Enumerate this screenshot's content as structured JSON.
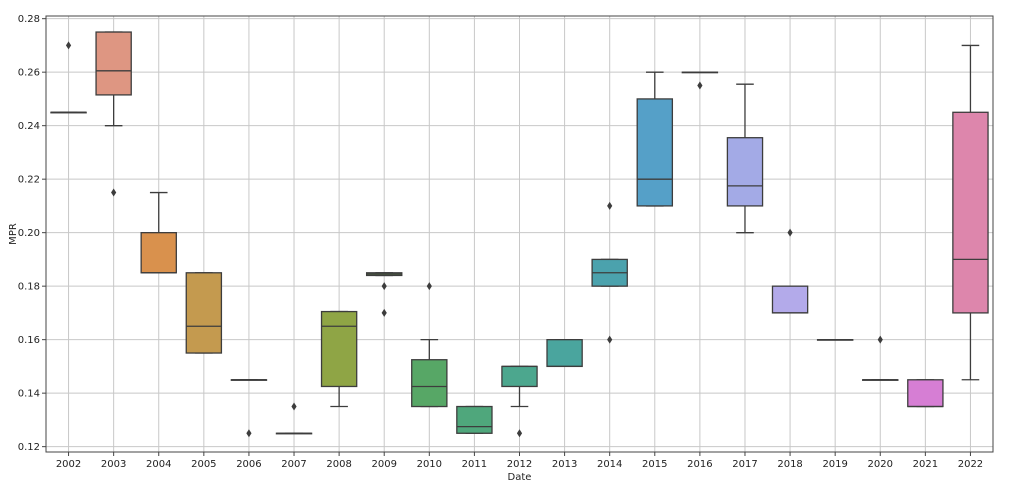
{
  "chart_data": {
    "type": "box",
    "xlabel": "Date",
    "ylabel": "MPR",
    "ylim": [
      0.118,
      0.281
    ],
    "y_ticks": [
      "0.12",
      "0.14",
      "0.16",
      "0.18",
      "0.20",
      "0.22",
      "0.24",
      "0.26",
      "0.28"
    ],
    "grid": true,
    "categories": [
      "2002",
      "2003",
      "2004",
      "2005",
      "2006",
      "2007",
      "2008",
      "2009",
      "2010",
      "2011",
      "2012",
      "2013",
      "2014",
      "2015",
      "2016",
      "2017",
      "2018",
      "2019",
      "2020",
      "2021",
      "2022"
    ],
    "boxes": [
      {
        "category": "2002",
        "q1": 0.245,
        "median": 0.245,
        "q3": 0.245,
        "whisker_low": 0.245,
        "whisker_high": 0.245,
        "outliers": [
          0.27
        ],
        "color": "#e6a48a"
      },
      {
        "category": "2003",
        "q1": 0.2515,
        "median": 0.2605,
        "q3": 0.275,
        "whisker_low": 0.24,
        "whisker_high": 0.275,
        "outliers": [
          0.215
        ],
        "color": "#de9682"
      },
      {
        "category": "2004",
        "q1": 0.185,
        "median": 0.185,
        "q3": 0.2,
        "whisker_low": 0.185,
        "whisker_high": 0.215,
        "outliers": [],
        "color": "#d9914d"
      },
      {
        "category": "2005",
        "q1": 0.155,
        "median": 0.165,
        "q3": 0.185,
        "whisker_low": 0.155,
        "whisker_high": 0.185,
        "outliers": [],
        "color": "#c49a4f"
      },
      {
        "category": "2006",
        "q1": 0.145,
        "median": 0.145,
        "q3": 0.145,
        "whisker_low": 0.145,
        "whisker_high": 0.145,
        "outliers": [
          0.125
        ],
        "color": "#b9a046"
      },
      {
        "category": "2007",
        "q1": 0.125,
        "median": 0.125,
        "q3": 0.125,
        "whisker_low": 0.125,
        "whisker_high": 0.125,
        "outliers": [
          0.135
        ],
        "color": "#a3a143"
      },
      {
        "category": "2008",
        "q1": 0.1425,
        "median": 0.165,
        "q3": 0.1705,
        "whisker_low": 0.135,
        "whisker_high": 0.1705,
        "outliers": [],
        "color": "#8fa545"
      },
      {
        "category": "2009",
        "q1": 0.184,
        "median": 0.1845,
        "q3": 0.185,
        "whisker_low": 0.184,
        "whisker_high": 0.185,
        "outliers": [
          0.18,
          0.17
        ],
        "color": "#6fa84a"
      },
      {
        "category": "2010",
        "q1": 0.135,
        "median": 0.1425,
        "q3": 0.1525,
        "whisker_low": 0.135,
        "whisker_high": 0.16,
        "outliers": [
          0.18
        ],
        "color": "#57a766"
      },
      {
        "category": "2011",
        "q1": 0.125,
        "median": 0.1275,
        "q3": 0.135,
        "whisker_low": 0.125,
        "whisker_high": 0.135,
        "outliers": [],
        "color": "#4fa77c"
      },
      {
        "category": "2012",
        "q1": 0.1425,
        "median": 0.15,
        "q3": 0.15,
        "whisker_low": 0.135,
        "whisker_high": 0.15,
        "outliers": [
          0.125
        ],
        "color": "#4ca78e"
      },
      {
        "category": "2013",
        "q1": 0.15,
        "median": 0.15,
        "q3": 0.16,
        "whisker_low": 0.15,
        "whisker_high": 0.16,
        "outliers": [],
        "color": "#4aa59e"
      },
      {
        "category": "2014",
        "q1": 0.18,
        "median": 0.185,
        "q3": 0.19,
        "whisker_low": 0.18,
        "whisker_high": 0.19,
        "outliers": [
          0.21,
          0.16
        ],
        "color": "#4ba2ad"
      },
      {
        "category": "2015",
        "q1": 0.21,
        "median": 0.22,
        "q3": 0.25,
        "whisker_low": 0.21,
        "whisker_high": 0.26,
        "outliers": [],
        "color": "#55a0c8"
      },
      {
        "category": "2016",
        "q1": 0.26,
        "median": 0.26,
        "q3": 0.26,
        "whisker_low": 0.26,
        "whisker_high": 0.26,
        "outliers": [
          0.255
        ],
        "color": "#7ba6d8"
      },
      {
        "category": "2017",
        "q1": 0.21,
        "median": 0.2175,
        "q3": 0.2355,
        "whisker_low": 0.2,
        "whisker_high": 0.2555,
        "outliers": [],
        "color": "#a3aae6"
      },
      {
        "category": "2018",
        "q1": 0.17,
        "median": 0.17,
        "q3": 0.18,
        "whisker_low": 0.17,
        "whisker_high": 0.18,
        "outliers": [
          0.2
        ],
        "color": "#b3aaea"
      },
      {
        "category": "2019",
        "q1": 0.16,
        "median": 0.16,
        "q3": 0.16,
        "whisker_low": 0.16,
        "whisker_high": 0.16,
        "outliers": [],
        "color": "#c5a4e6"
      },
      {
        "category": "2020",
        "q1": 0.145,
        "median": 0.145,
        "q3": 0.145,
        "whisker_low": 0.145,
        "whisker_high": 0.145,
        "outliers": [
          0.16
        ],
        "color": "#d69ee0"
      },
      {
        "category": "2021",
        "q1": 0.135,
        "median": 0.135,
        "q3": 0.145,
        "whisker_low": 0.135,
        "whisker_high": 0.145,
        "outliers": [],
        "color": "#d67ed4"
      },
      {
        "category": "2022",
        "q1": 0.17,
        "median": 0.19,
        "q3": 0.245,
        "whisker_low": 0.145,
        "whisker_high": 0.27,
        "outliers": [],
        "color": "#dd86ac"
      }
    ]
  }
}
